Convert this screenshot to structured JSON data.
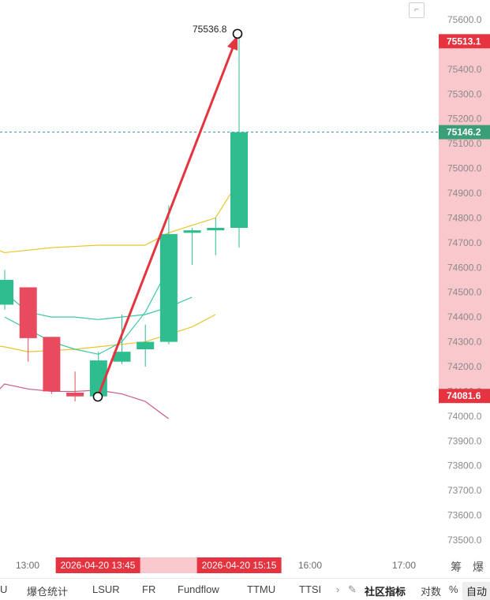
{
  "chart_data": {
    "type": "candlestick",
    "title": "",
    "y_ticks": [
      75600.0,
      75500.0,
      75400.0,
      75300.0,
      75200.0,
      75100.0,
      75000.0,
      74900.0,
      74800.0,
      74700.0,
      74600.0,
      74500.0,
      74400.0,
      74300.0,
      74200.0,
      74100.0,
      74000.0,
      73900.0,
      73800.0,
      73700.0,
      73600.0,
      73500.0
    ],
    "ylim": [
      73450,
      75680
    ],
    "x_ticks": [
      "13:00",
      "16:00",
      "17:00"
    ],
    "candles": [
      {
        "open": 74450,
        "close": 74550,
        "high": 74590,
        "low": 74430
      },
      {
        "open": 74520,
        "close": 74315,
        "high": 74520,
        "low": 74220
      },
      {
        "open": 74320,
        "close": 74100,
        "high": 74320,
        "low": 74090
      },
      {
        "open": 74095,
        "close": 74080,
        "high": 74180,
        "low": 74060
      },
      {
        "open": 74080,
        "close": 74225,
        "high": 74260,
        "low": 74070
      },
      {
        "open": 74220,
        "close": 74260,
        "high": 74410,
        "low": 74210
      },
      {
        "open": 74270,
        "close": 74300,
        "high": 74370,
        "low": 74200
      },
      {
        "open": 74300,
        "close": 74735,
        "high": 74850,
        "low": 74290
      },
      {
        "open": 74740,
        "close": 74750,
        "high": 74760,
        "low": 74610
      },
      {
        "open": 74750,
        "close": 74760,
        "high": 74800,
        "low": 74650
      },
      {
        "open": 74760,
        "close": 75146.2,
        "high": 75536.8,
        "low": 74680
      }
    ],
    "lines": [
      {
        "color": "#e8c52c",
        "values": [
          74700,
          74660,
          74670,
          74680,
          74685,
          74690,
          74690,
          74690,
          74740,
          74770,
          74800,
          74950
        ]
      },
      {
        "color": "#e8c52c",
        "values": [
          74290,
          74280,
          74260,
          74265,
          74270,
          74280,
          74290,
          74300,
          74330,
          74360,
          74410
        ]
      },
      {
        "color": "#3cc4a8",
        "values": [
          74600,
          74500,
          74420,
          74400,
          74400,
          74390,
          74400,
          74410,
          74440,
          74480
        ]
      },
      {
        "color": "#3cc4a8",
        "values": [
          74400,
          74350,
          74300,
          74270,
          74250,
          74300,
          74420,
          74600
        ]
      },
      {
        "color": "#c85a8a",
        "values": [
          74030,
          74130,
          74110,
          74100,
          74100,
          74105,
          74090,
          74060,
          73990
        ]
      }
    ],
    "current_price": "75146.2",
    "high_marker_label": "75513.1",
    "low_marker_label": "74081.6",
    "peak_annotation": "75536.8",
    "time_highlight": {
      "start": "2026-04-20 13:45",
      "end": "2026-04-20 15:15"
    },
    "colors": {
      "up": "#2dbd8e",
      "down": "#e84a5f",
      "arrow": "#e5333f",
      "axis_band": "#f9c8cd",
      "price_tag": "#3a9f78"
    }
  },
  "toolbar": {
    "filter": "筹",
    "explode": "爆"
  },
  "tabs": [
    "U",
    "爆仓统计",
    "LSUR",
    "FR",
    "Fundflow",
    "TTMU",
    "TTSI"
  ],
  "tab_more": "›",
  "community_indicator": "社区指标",
  "log_label": "对数",
  "percent_label": "%",
  "auto_label": "自动",
  "layout_icon": "layout-icon"
}
